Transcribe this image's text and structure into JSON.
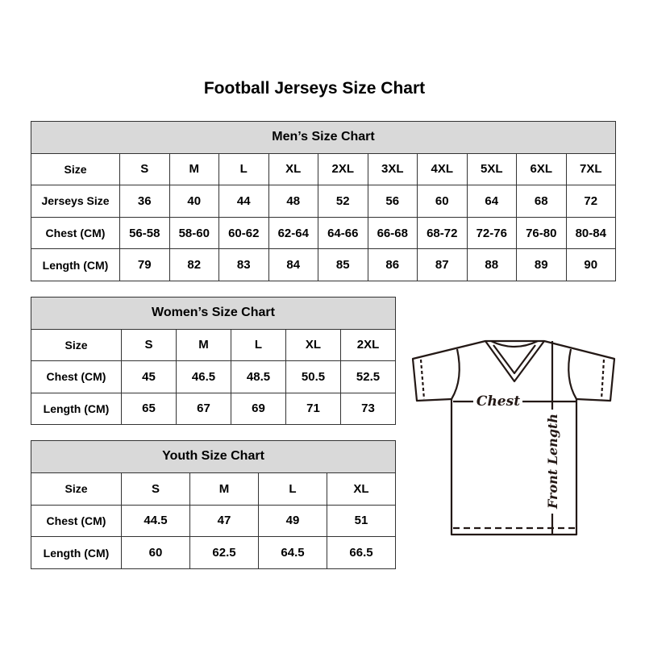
{
  "title": "Football Jerseys Size Chart",
  "men": {
    "heading": "Men’s Size Chart",
    "rows": [
      {
        "label": "Size",
        "values": [
          "S",
          "M",
          "L",
          "XL",
          "2XL",
          "3XL",
          "4XL",
          "5XL",
          "6XL",
          "7XL"
        ]
      },
      {
        "label": "Jerseys Size",
        "values": [
          "36",
          "40",
          "44",
          "48",
          "52",
          "56",
          "60",
          "64",
          "68",
          "72"
        ]
      },
      {
        "label": "Chest (CM)",
        "values": [
          "56-58",
          "58-60",
          "60-62",
          "62-64",
          "64-66",
          "66-68",
          "68-72",
          "72-76",
          "76-80",
          "80-84"
        ]
      },
      {
        "label": "Length (CM)",
        "values": [
          "79",
          "82",
          "83",
          "84",
          "85",
          "86",
          "87",
          "88",
          "89",
          "90"
        ]
      }
    ]
  },
  "women": {
    "heading": "Women’s Size Chart",
    "rows": [
      {
        "label": "Size",
        "values": [
          "S",
          "M",
          "L",
          "XL",
          "2XL"
        ]
      },
      {
        "label": "Chest (CM)",
        "values": [
          "45",
          "46.5",
          "48.5",
          "50.5",
          "52.5"
        ]
      },
      {
        "label": "Length (CM)",
        "values": [
          "65",
          "67",
          "69",
          "71",
          "73"
        ]
      }
    ]
  },
  "youth": {
    "heading": "Youth Size Chart",
    "rows": [
      {
        "label": "Size",
        "values": [
          "S",
          "M",
          "L",
          "XL"
        ]
      },
      {
        "label": "Chest (CM)",
        "values": [
          "44.5",
          "47",
          "49",
          "51"
        ]
      },
      {
        "label": "Length (CM)",
        "values": [
          "60",
          "62.5",
          "64.5",
          "66.5"
        ]
      }
    ]
  },
  "diagram": {
    "chest_label": "Chest",
    "length_label": "Front Length"
  }
}
